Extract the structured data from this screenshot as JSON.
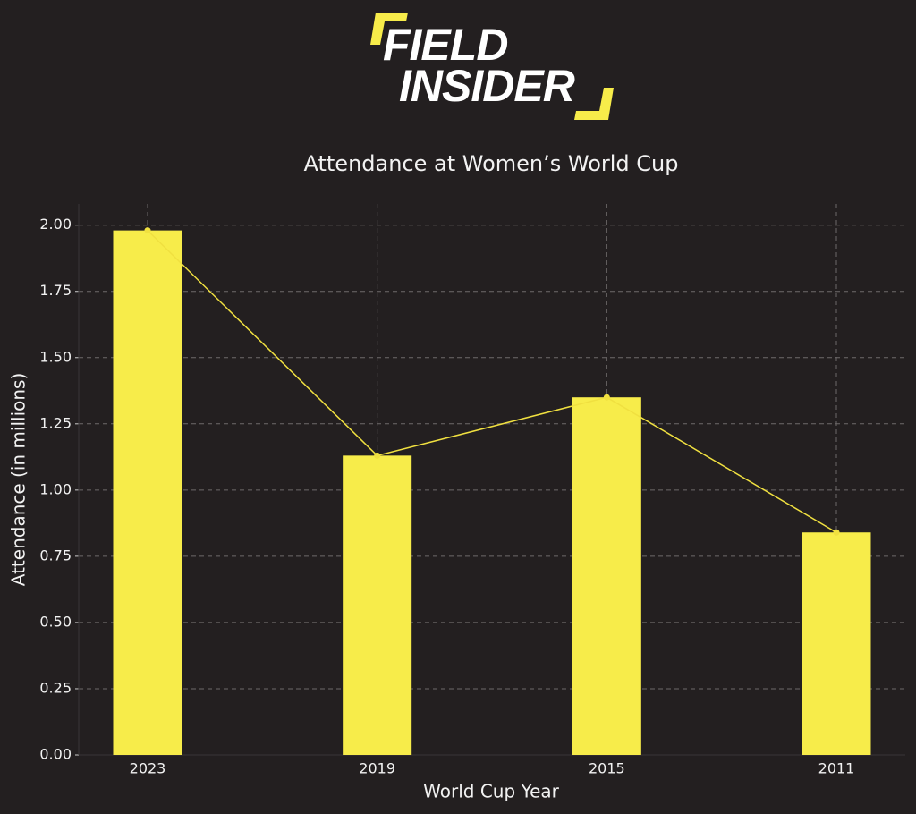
{
  "logo": {
    "line1": "FIELD",
    "line2": "INSIDER"
  },
  "chart_data": {
    "type": "bar",
    "title": "Attendance at Women’s World Cup",
    "x_label": "World Cup Year",
    "y_label": "Attendance (in millions)",
    "categories": [
      "2023",
      "2019",
      "2015",
      "2011"
    ],
    "values": [
      1.98,
      1.13,
      1.35,
      0.84
    ],
    "color": "#f7ec4a",
    "line_color": "#f0e040",
    "ylim": [
      0,
      2.08
    ],
    "yticks": [
      {
        "value": 0,
        "label": "0.00"
      },
      {
        "value": 0.25,
        "label": "0.25"
      },
      {
        "value": 0.5,
        "label": "0.50"
      },
      {
        "value": 0.75,
        "label": "0.75"
      },
      {
        "value": 1,
        "label": "1.00"
      },
      {
        "value": 1.25,
        "label": "1.25"
      },
      {
        "value": 1.5,
        "label": "1.50"
      },
      {
        "value": 1.75,
        "label": "1.75"
      },
      {
        "value": 2,
        "label": "2.00"
      }
    ],
    "grid": true
  }
}
